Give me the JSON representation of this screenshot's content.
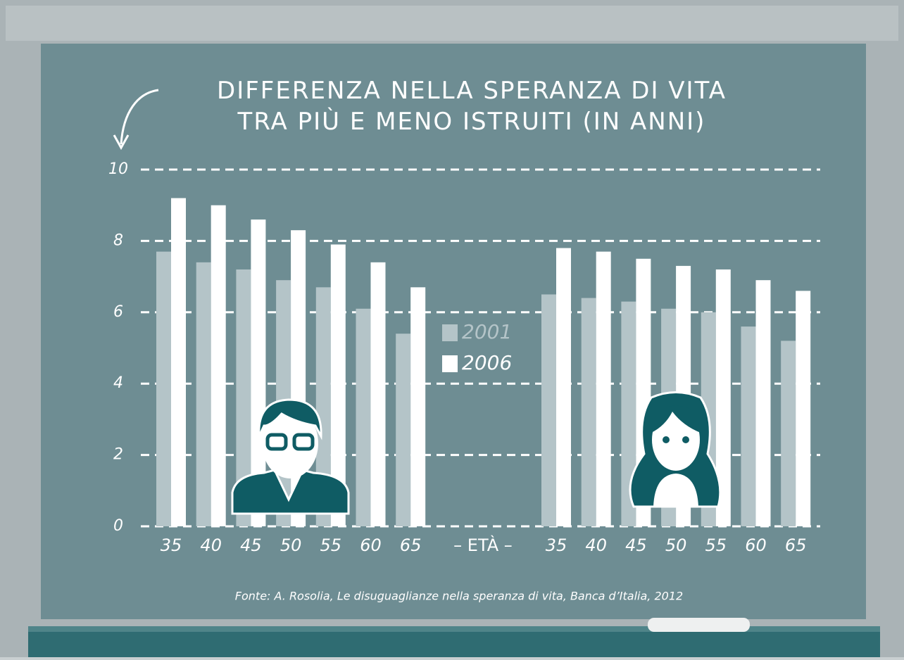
{
  "chart_data": {
    "type": "bar",
    "title": "DIFFERENZA NELLA SPERANZA DI VITA\nTRA PIÙ E MENO ISTRUITI (IN ANNI)",
    "x_label": "– ETÀ –",
    "categories": [
      "35",
      "40",
      "45",
      "50",
      "55",
      "60",
      "65",
      "35",
      "40",
      "45",
      "50",
      "55",
      "60",
      "65"
    ],
    "series": [
      {
        "name": "2001",
        "color": "#b4c4c8",
        "values": [
          7.7,
          7.4,
          7.2,
          6.9,
          6.7,
          6.1,
          5.4,
          6.5,
          6.4,
          6.3,
          6.1,
          6.0,
          5.6,
          5.2
        ]
      },
      {
        "name": "2006",
        "color": "#ffffff",
        "values": [
          9.2,
          9.0,
          8.6,
          8.3,
          7.9,
          7.4,
          6.7,
          7.8,
          7.7,
          7.5,
          7.3,
          7.2,
          6.9,
          6.6
        ]
      }
    ],
    "ylim": [
      0,
      10
    ],
    "yticks": [
      0,
      2,
      4,
      6,
      8,
      10
    ],
    "grid": true,
    "source": "Fonte: A. Rosolia, Le disuguaglianze nella speranza di vita, Banca d’Italia, 2012"
  }
}
